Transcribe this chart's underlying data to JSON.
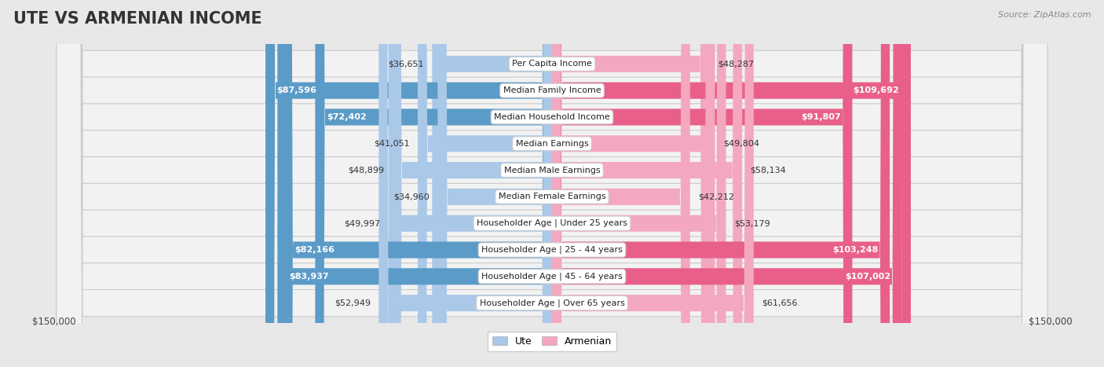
{
  "title": "UTE VS ARMENIAN INCOME",
  "source": "Source: ZipAtlas.com",
  "categories": [
    "Per Capita Income",
    "Median Family Income",
    "Median Household Income",
    "Median Earnings",
    "Median Male Earnings",
    "Median Female Earnings",
    "Householder Age | Under 25 years",
    "Householder Age | 25 - 44 years",
    "Householder Age | 45 - 64 years",
    "Householder Age | Over 65 years"
  ],
  "ute_values": [
    36651,
    87596,
    72402,
    41051,
    48899,
    34960,
    49997,
    82166,
    83937,
    52949
  ],
  "armenian_values": [
    48287,
    109692,
    91807,
    49804,
    58134,
    42212,
    53179,
    103248,
    107002,
    61656
  ],
  "ute_labels": [
    "$36,651",
    "$87,596",
    "$72,402",
    "$41,051",
    "$48,899",
    "$34,960",
    "$49,997",
    "$82,166",
    "$83,937",
    "$52,949"
  ],
  "armenian_labels": [
    "$48,287",
    "$109,692",
    "$91,807",
    "$49,804",
    "$58,134",
    "$42,212",
    "$53,179",
    "$103,248",
    "$107,002",
    "$61,656"
  ],
  "ute_color_light": "#aac8e8",
  "ute_color_dark": "#5b9bc8",
  "armenian_color_light": "#f4a8c0",
  "armenian_color_dark": "#e8608a",
  "large_threshold": 65000,
  "max_value": 150000,
  "bg_color": "#e8e8e8",
  "row_bg": "#f2f2f2",
  "title_fontsize": 15,
  "value_fontsize": 8,
  "cat_fontsize": 8,
  "axis_label": "$150,000"
}
